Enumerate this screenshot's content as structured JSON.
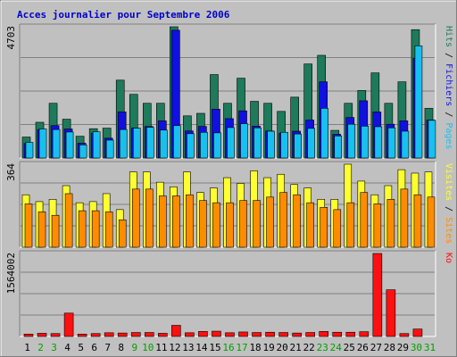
{
  "title": "Acces journalier pour Septembre 2006",
  "colors": {
    "hits": "#1d7a5a",
    "files": "#1010e0",
    "pages": "#18c0f0",
    "visits": "#ffff30",
    "sites": "#ff8c00",
    "kbytes": "#ff1010",
    "background": "#c0c0c0",
    "weekend_day": "#00a000",
    "weekday": "#000000",
    "title_color": "#0000cc"
  },
  "chart_data": [
    {
      "type": "bar",
      "title": "Acces journalier pour Septembre 2006",
      "categories": [
        "1",
        "2",
        "3",
        "4",
        "5",
        "6",
        "7",
        "8",
        "9",
        "10",
        "11",
        "12",
        "13",
        "14",
        "15",
        "16",
        "17",
        "18",
        "19",
        "20",
        "21",
        "22",
        "23",
        "24",
        "25",
        "26",
        "27",
        "28",
        "29",
        "30",
        "31"
      ],
      "weekend_days": [
        2,
        3,
        9,
        10,
        16,
        17,
        23,
        24,
        30,
        31
      ],
      "ymax_label": "4703",
      "ylim": [
        0,
        4703
      ],
      "axis_label_parts": [
        "Pages",
        "Fichiers",
        "Hits"
      ],
      "series": [
        {
          "name": "Hits",
          "values": [
            750,
            1280,
            1960,
            1390,
            780,
            1050,
            1070,
            2790,
            2280,
            1960,
            1960,
            4703,
            1510,
            1600,
            2990,
            1960,
            2860,
            2030,
            1960,
            1670,
            2180,
            3370,
            3680,
            990,
            1960,
            2420,
            3050,
            1960,
            2730,
            4600,
            1780
          ]
        },
        {
          "name": "Fichiers",
          "values": [
            520,
            1020,
            1160,
            1040,
            530,
            890,
            710,
            1650,
            1070,
            1130,
            1330,
            4580,
            970,
            1130,
            1750,
            1410,
            1690,
            1140,
            970,
            890,
            960,
            1360,
            2730,
            850,
            1450,
            2050,
            1650,
            1210,
            1330,
            3580,
            1360
          ]
        },
        {
          "name": "Pages",
          "values": [
            560,
            1040,
            1020,
            930,
            470,
            940,
            640,
            1020,
            1070,
            1100,
            1000,
            1160,
            870,
            920,
            900,
            1090,
            1230,
            1080,
            960,
            920,
            860,
            1060,
            1780,
            790,
            1210,
            1140,
            1120,
            1080,
            960,
            4020,
            1350
          ]
        }
      ]
    },
    {
      "type": "bar",
      "ymax_label": "364",
      "ylim": [
        0,
        364
      ],
      "axis_label_parts": [
        "Sites",
        "Visites"
      ],
      "series": [
        {
          "name": "Visites",
          "values": [
            230,
            200,
            210,
            270,
            195,
            200,
            235,
            165,
            330,
            330,
            285,
            265,
            330,
            240,
            260,
            305,
            280,
            335,
            305,
            320,
            275,
            260,
            210,
            210,
            364,
            290,
            230,
            270,
            340,
            325,
            330
          ]
        },
        {
          "name": "Sites",
          "values": [
            190,
            155,
            140,
            235,
            160,
            160,
            155,
            120,
            255,
            255,
            225,
            225,
            230,
            205,
            195,
            195,
            205,
            205,
            220,
            240,
            230,
            195,
            175,
            165,
            195,
            240,
            190,
            210,
            255,
            230,
            220
          ]
        }
      ]
    },
    {
      "type": "bar",
      "ymax_label": "1564002",
      "ylim": [
        0,
        1564002
      ],
      "axis_label_parts": [
        "Ko"
      ],
      "series": [
        {
          "name": "Ko",
          "values": [
            45000,
            60000,
            55000,
            440000,
            45000,
            55000,
            70000,
            65000,
            75000,
            75000,
            60000,
            210000,
            70000,
            95000,
            100000,
            70000,
            85000,
            75000,
            80000,
            75000,
            65000,
            75000,
            95000,
            80000,
            80000,
            90000,
            1564002,
            880000,
            55000,
            140000,
            0
          ]
        }
      ]
    }
  ]
}
